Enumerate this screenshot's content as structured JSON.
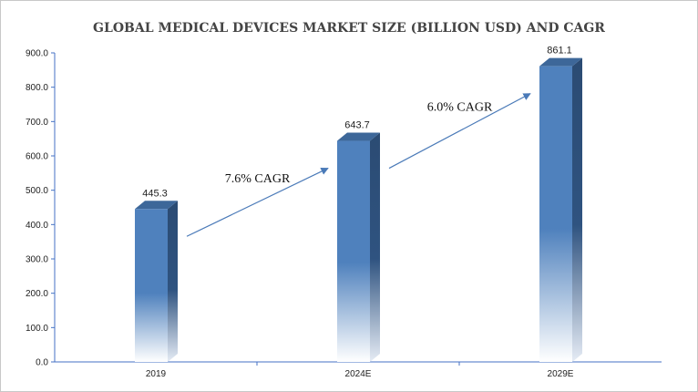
{
  "chart_data": {
    "type": "bar",
    "title": "GLOBAL MEDICAL DEVICES MARKET SIZE (BILLION USD) AND CAGR",
    "xlabel": "",
    "ylabel": "",
    "categories": [
      "2019",
      "2024E",
      "2029E"
    ],
    "values": [
      445.3,
      643.7,
      861.1
    ],
    "value_labels": [
      "445.3",
      "643.7",
      "861.1"
    ],
    "ylim": [
      0,
      900
    ],
    "yticks": [
      "0.0",
      "100.0",
      "200.0",
      "300.0",
      "400.0",
      "500.0",
      "600.0",
      "700.0",
      "800.0",
      "900.0"
    ],
    "grid": false,
    "legend": "none",
    "annotations": [
      {
        "text": "7.6% CAGR",
        "from_category": "2019",
        "to_category": "2024E"
      },
      {
        "text": "6.0% CAGR",
        "from_category": "2024E",
        "to_category": "2029E"
      }
    ],
    "colors": {
      "bar_front": "#4f81bd",
      "bar_top": "#3d6799",
      "bar_side": "#2b4b73",
      "arrow": "#4a7ab8",
      "axis": "#4472c4"
    }
  }
}
